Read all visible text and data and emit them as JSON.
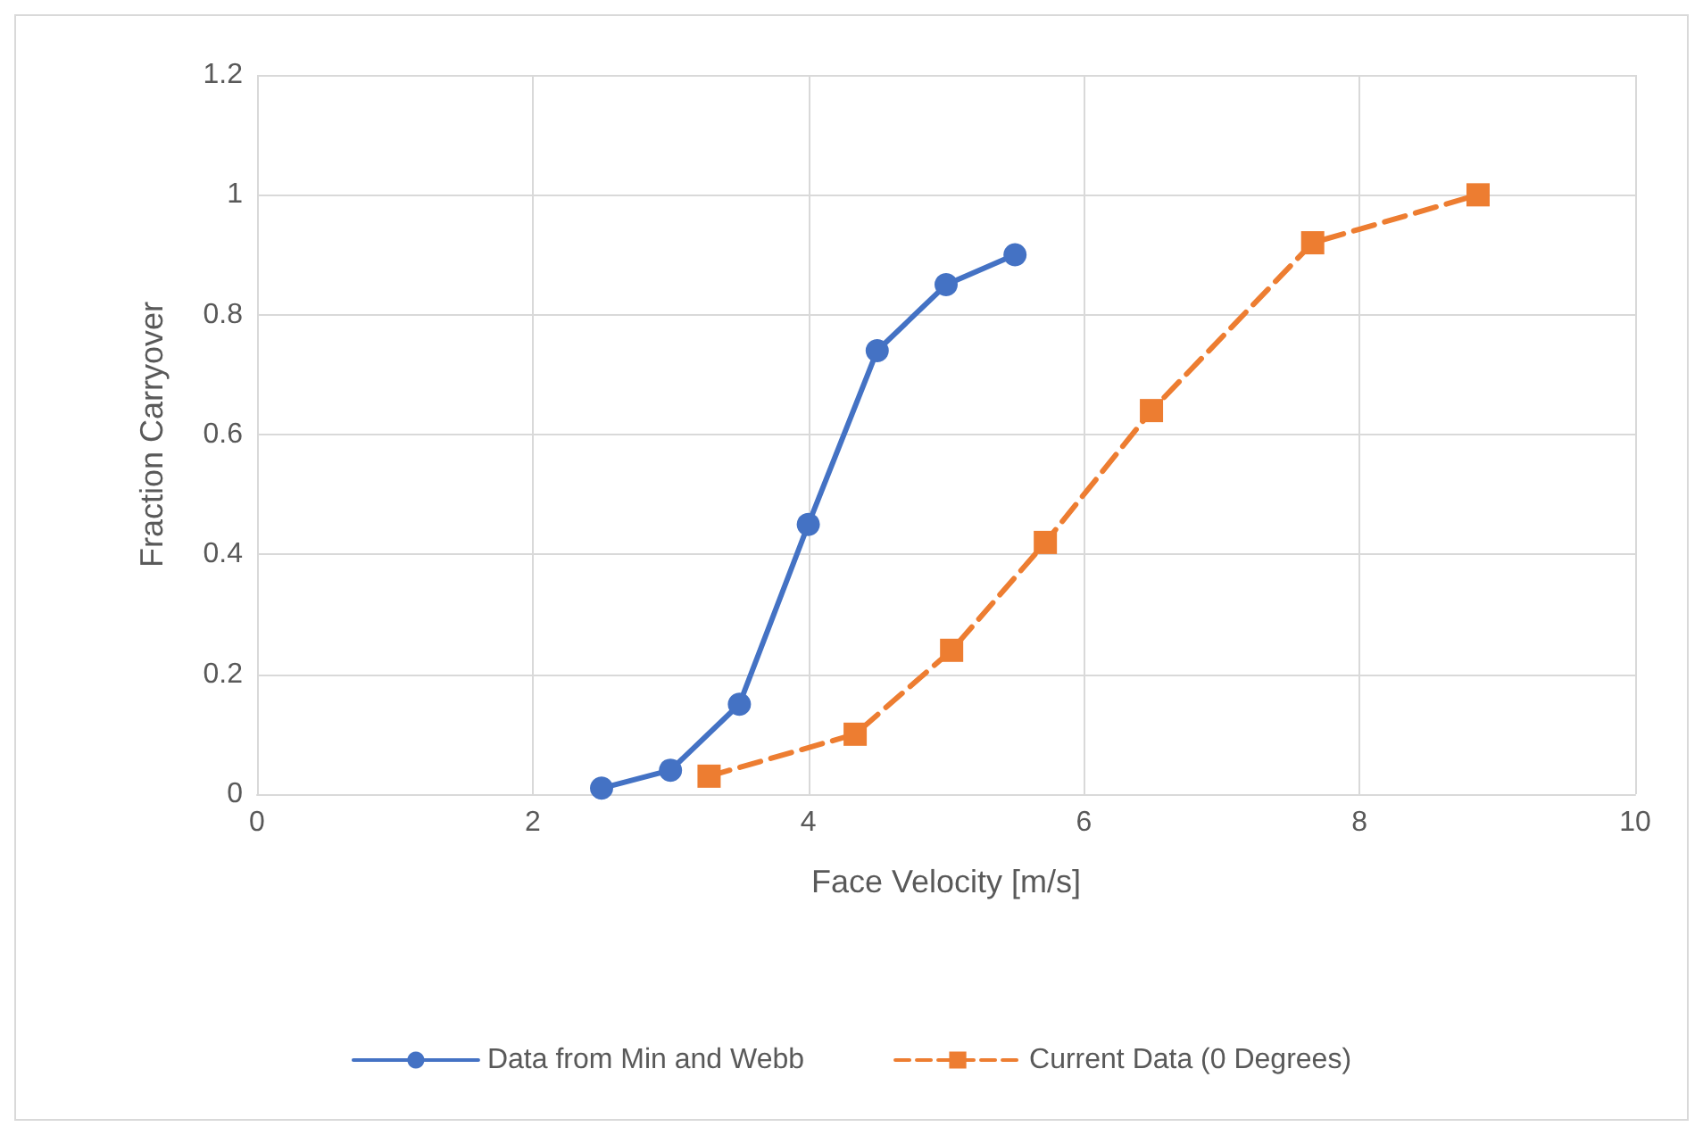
{
  "chart_data": {
    "type": "line",
    "xlabel": "Face Velocity [m/s]",
    "ylabel": "Fraction Carryover",
    "xlim": [
      0,
      10
    ],
    "xticks": [
      0,
      2,
      4,
      6,
      8,
      10
    ],
    "ylim": [
      0,
      1.2
    ],
    "yticks": [
      0,
      0.2,
      0.4,
      0.6,
      0.8,
      1,
      1.2
    ],
    "grid": true,
    "legend": "bottom",
    "series": [
      {
        "name": "Data from Min and Webb",
        "color": "#4472c4",
        "marker": "circle",
        "line_style": "solid",
        "x": [
          2.5,
          3,
          3.5,
          4,
          4.5,
          5,
          5.5
        ],
        "values": [
          0.01,
          0.04,
          0.15,
          0.45,
          0.74,
          0.85,
          0.9
        ]
      },
      {
        "name": "Current Data (0 Degrees)",
        "color": "#ed7d31",
        "marker": "square",
        "line_style": "dashed",
        "x": [
          3.28,
          4.34,
          5.04,
          5.72,
          6.49,
          7.66,
          8.86
        ],
        "values": [
          0.03,
          0.1,
          0.24,
          0.42,
          0.64,
          0.92,
          1.0
        ]
      }
    ]
  }
}
